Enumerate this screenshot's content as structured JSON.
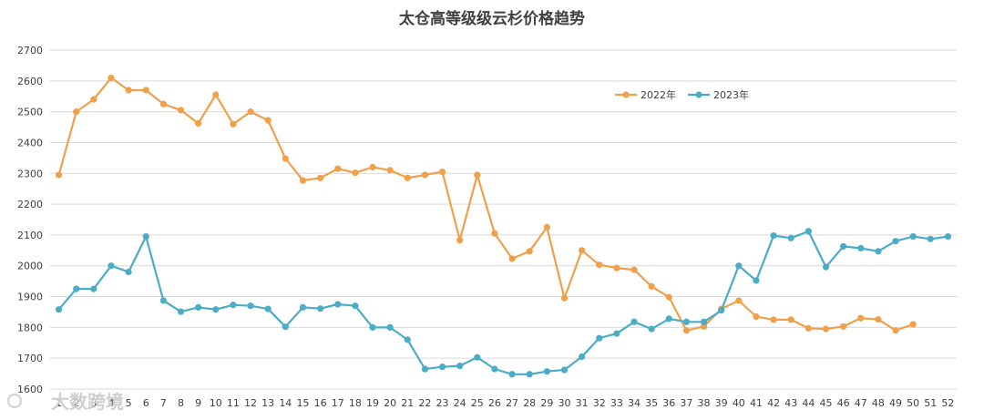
{
  "chart_data": {
    "type": "line",
    "title": "太仓高等级级云杉价格趋势",
    "xlabel": "",
    "ylabel": "",
    "ylim": [
      1600,
      2700
    ],
    "yticks": [
      1600,
      1700,
      1800,
      1900,
      2000,
      2100,
      2200,
      2300,
      2400,
      2500,
      2600,
      2700
    ],
    "grid": true,
    "legend_position": "top-right",
    "x": [
      1,
      2,
      3,
      4,
      5,
      6,
      7,
      8,
      9,
      10,
      11,
      12,
      13,
      14,
      15,
      16,
      17,
      18,
      19,
      20,
      21,
      22,
      23,
      24,
      25,
      26,
      27,
      28,
      29,
      30,
      31,
      32,
      33,
      34,
      35,
      36,
      37,
      38,
      39,
      40,
      41,
      42,
      43,
      44,
      45,
      46,
      47,
      48,
      49,
      50,
      51,
      52
    ],
    "series": [
      {
        "name": "2022年",
        "color": "#f0a04b",
        "values": [
          2295,
          2500,
          2540,
          2610,
          2570,
          2570,
          2525,
          2505,
          2462,
          2555,
          2460,
          2500,
          2472,
          2348,
          2277,
          2285,
          2315,
          2302,
          2320,
          2310,
          2285,
          2295,
          2305,
          2083,
          2295,
          2105,
          2023,
          2047,
          2125,
          1895,
          2050,
          2003,
          1993,
          1987,
          1933,
          1898,
          1790,
          1803,
          1860,
          1887,
          1835,
          1825,
          1825,
          1797,
          1795,
          1803,
          1830,
          1826,
          1790,
          1810,
          null,
          null
        ]
      },
      {
        "name": "2023年",
        "color": "#4bacc6",
        "values": [
          1858,
          1925,
          1925,
          2000,
          1980,
          2095,
          1887,
          1851,
          1865,
          1858,
          1873,
          1870,
          1860,
          1802,
          1865,
          1861,
          1875,
          1870,
          1800,
          1800,
          1760,
          1665,
          1672,
          1675,
          1703,
          1665,
          1648,
          1648,
          1657,
          1662,
          1705,
          1765,
          1780,
          1818,
          1795,
          1828,
          1818,
          1818,
          1855,
          2000,
          1952,
          2098,
          2090,
          2112,
          1996,
          2063,
          2057,
          2047,
          2080,
          2095,
          2087,
          2095
        ]
      }
    ]
  },
  "watermark": "大数跨境"
}
